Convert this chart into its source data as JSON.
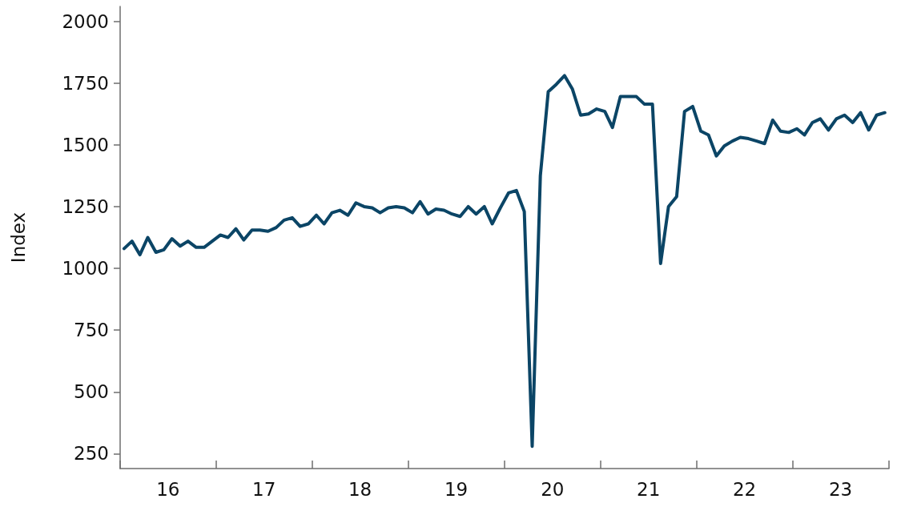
{
  "chart_data": {
    "type": "line",
    "ylabel": "Index",
    "x": [
      "2016-01-16",
      "2016-02-15",
      "2016-03-16",
      "2016-04-15",
      "2016-05-16",
      "2016-06-15",
      "2016-07-16",
      "2016-08-16",
      "2016-09-15",
      "2016-10-16",
      "2016-11-15",
      "2016-12-16",
      "2017-01-16",
      "2017-02-14",
      "2017-03-16",
      "2017-04-15",
      "2017-05-16",
      "2017-06-15",
      "2017-07-16",
      "2017-08-16",
      "2017-09-15",
      "2017-10-16",
      "2017-11-15",
      "2017-12-16",
      "2018-01-16",
      "2018-02-14",
      "2018-03-16",
      "2018-04-15",
      "2018-05-16",
      "2018-06-15",
      "2018-07-16",
      "2018-08-16",
      "2018-09-15",
      "2018-10-16",
      "2018-11-15",
      "2018-12-16",
      "2019-01-16",
      "2019-02-14",
      "2019-03-16",
      "2019-04-15",
      "2019-05-16",
      "2019-06-15",
      "2019-07-16",
      "2019-08-16",
      "2019-09-15",
      "2019-10-16",
      "2019-11-15",
      "2019-12-16",
      "2020-01-16",
      "2020-02-15",
      "2020-03-16",
      "2020-04-15",
      "2020-05-16",
      "2020-06-15",
      "2020-07-16",
      "2020-08-16",
      "2020-09-15",
      "2020-10-16",
      "2020-11-15",
      "2020-12-16",
      "2021-01-16",
      "2021-02-14",
      "2021-03-16",
      "2021-04-15",
      "2021-05-16",
      "2021-06-15",
      "2021-07-16",
      "2021-08-16",
      "2021-09-15",
      "2021-10-16",
      "2021-11-15",
      "2021-12-16",
      "2022-01-16",
      "2022-02-14",
      "2022-03-16",
      "2022-04-15",
      "2022-05-16",
      "2022-06-15",
      "2022-07-16",
      "2022-08-16",
      "2022-09-15",
      "2022-10-16",
      "2022-11-15",
      "2022-12-16",
      "2023-01-16",
      "2023-02-14",
      "2023-03-16",
      "2023-04-15",
      "2023-05-16",
      "2023-06-15",
      "2023-07-16",
      "2023-08-16",
      "2023-09-15",
      "2023-10-16",
      "2023-11-15",
      "2023-12-16"
    ],
    "series": [
      {
        "color": "#0b4566",
        "values": [
          1080,
          1110,
          1055,
          1125,
          1065,
          1075,
          1120,
          1090,
          1110,
          1085,
          1085,
          1110,
          1135,
          1125,
          1160,
          1115,
          1155,
          1155,
          1150,
          1165,
          1195,
          1205,
          1170,
          1180,
          1215,
          1180,
          1225,
          1235,
          1215,
          1265,
          1250,
          1245,
          1225,
          1245,
          1250,
          1245,
          1225,
          1270,
          1220,
          1240,
          1235,
          1220,
          1210,
          1250,
          1220,
          1250,
          1180,
          1245,
          1305,
          1315,
          1230,
          280,
          1375,
          1715,
          1745,
          1780,
          1725,
          1620,
          1625,
          1645,
          1635,
          1570,
          1695,
          1695,
          1695,
          1665,
          1665,
          1020,
          1250,
          1290,
          1635,
          1655,
          1555,
          1540,
          1455,
          1495,
          1515,
          1530,
          1525,
          1515,
          1505,
          1600,
          1555,
          1550,
          1565,
          1540,
          1590,
          1605,
          1560,
          1605,
          1620,
          1590,
          1630,
          1560,
          1620,
          1630
        ]
      }
    ],
    "xlim": [
      "2016-01-01",
      "2024-01-01"
    ],
    "xticks": [
      {
        "value": "2016-01-01",
        "label": null
      },
      {
        "value": "2016-07-01",
        "label": "16"
      },
      {
        "value": "2017-01-01",
        "label": null
      },
      {
        "value": "2017-07-01",
        "label": "17"
      },
      {
        "value": "2018-01-01",
        "label": null
      },
      {
        "value": "2018-07-01",
        "label": "18"
      },
      {
        "value": "2019-01-01",
        "label": null
      },
      {
        "value": "2019-07-01",
        "label": "19"
      },
      {
        "value": "2020-01-01",
        "label": null
      },
      {
        "value": "2020-07-01",
        "label": "20"
      },
      {
        "value": "2021-01-01",
        "label": null
      },
      {
        "value": "2021-07-01",
        "label": "21"
      },
      {
        "value": "2022-01-01",
        "label": null
      },
      {
        "value": "2022-07-01",
        "label": "22"
      },
      {
        "value": "2023-01-01",
        "label": null
      },
      {
        "value": "2023-07-01",
        "label": "23"
      },
      {
        "value": "2024-01-01",
        "label": null
      }
    ],
    "ylim": [
      190,
      2060
    ],
    "yticks": [
      250,
      500,
      750,
      1000,
      1250,
      1500,
      1750,
      2000
    ],
    "grid": false,
    "marker": "none",
    "line_style": "solid"
  }
}
